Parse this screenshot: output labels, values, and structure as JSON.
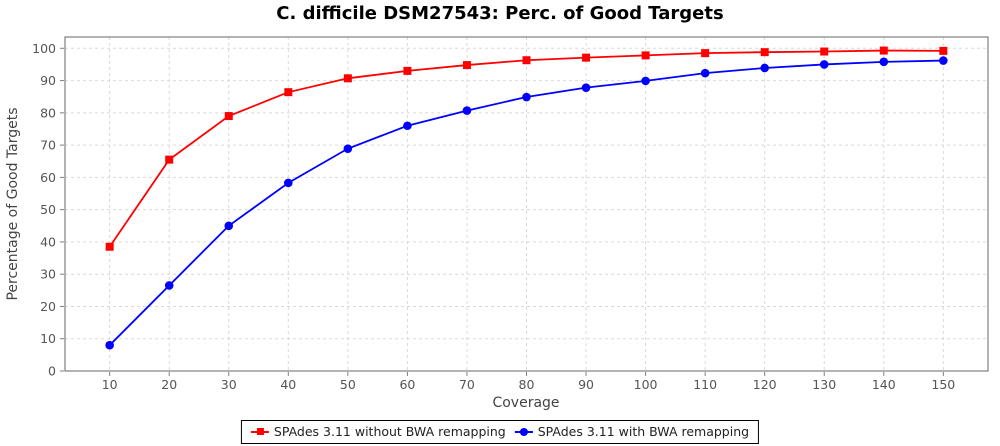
{
  "title": "C. difficile DSM27543: Perc. of Good Targets",
  "chart_data": {
    "type": "line",
    "title": "C. difficile DSM27543: Perc. of Good Targets",
    "xlabel": "Coverage",
    "ylabel": "Percentage of Good Targets",
    "x": [
      10,
      20,
      30,
      40,
      50,
      60,
      70,
      80,
      90,
      100,
      110,
      120,
      130,
      140,
      150
    ],
    "series": [
      {
        "name": "SPAdes 3.11 without BWA remapping",
        "color": "#ff0000",
        "marker": "square",
        "values": [
          38.5,
          65.5,
          79.0,
          86.4,
          90.7,
          93.0,
          94.8,
          96.3,
          97.1,
          97.8,
          98.5,
          98.8,
          99.0,
          99.3,
          99.2
        ]
      },
      {
        "name": "SPAdes 3.11 with BWA remapping",
        "color": "#0000ff",
        "marker": "circle",
        "values": [
          8.0,
          26.5,
          45.0,
          58.3,
          68.9,
          76.0,
          80.7,
          84.9,
          87.8,
          89.9,
          92.3,
          93.9,
          95.0,
          95.8,
          96.2
        ]
      }
    ],
    "xticks": [
      10,
      20,
      30,
      40,
      50,
      60,
      70,
      80,
      90,
      100,
      110,
      120,
      130,
      140,
      150
    ],
    "yticks": [
      0,
      10,
      20,
      30,
      40,
      50,
      60,
      70,
      80,
      90,
      100
    ],
    "xlim": [
      2.5,
      157.5
    ],
    "ylim": [
      0,
      103.5
    ],
    "grid": true,
    "legend_position": "bottom"
  },
  "colors": {
    "grid": "#d9d9d9",
    "plot_border": "#808080",
    "tick": "#808080",
    "tick_label": "#555555",
    "axis_title": "#444444",
    "title": "#000000",
    "legend_border": "#000000",
    "background": "#ffffff"
  }
}
